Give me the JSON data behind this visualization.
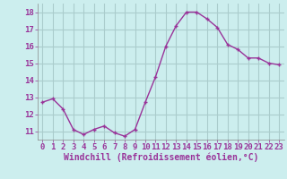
{
  "x": [
    0,
    1,
    2,
    3,
    4,
    5,
    6,
    7,
    8,
    9,
    10,
    11,
    12,
    13,
    14,
    15,
    16,
    17,
    18,
    19,
    20,
    21,
    22,
    23
  ],
  "y": [
    12.7,
    12.9,
    12.3,
    11.1,
    10.8,
    11.1,
    11.3,
    10.9,
    10.7,
    11.1,
    12.7,
    14.2,
    16.0,
    17.2,
    18.0,
    18.0,
    17.6,
    17.1,
    16.1,
    15.8,
    15.3,
    15.3,
    15.0,
    14.9
  ],
  "line_color": "#993399",
  "marker": "+",
  "bg_color": "#cceeee",
  "grid_color": "#aacccc",
  "xlabel": "Windchill (Refroidissement éolien,°C)",
  "xlabel_color": "#993399",
  "tick_color": "#993399",
  "ylim": [
    10.5,
    18.5
  ],
  "xlim": [
    -0.5,
    23.5
  ],
  "yticks": [
    11,
    12,
    13,
    14,
    15,
    16,
    17,
    18
  ],
  "xticks": [
    0,
    1,
    2,
    3,
    4,
    5,
    6,
    7,
    8,
    9,
    10,
    11,
    12,
    13,
    14,
    15,
    16,
    17,
    18,
    19,
    20,
    21,
    22,
    23
  ],
  "font_size": 6.5,
  "xlabel_fontsize": 7.0,
  "marker_size": 3,
  "linewidth": 1.0
}
